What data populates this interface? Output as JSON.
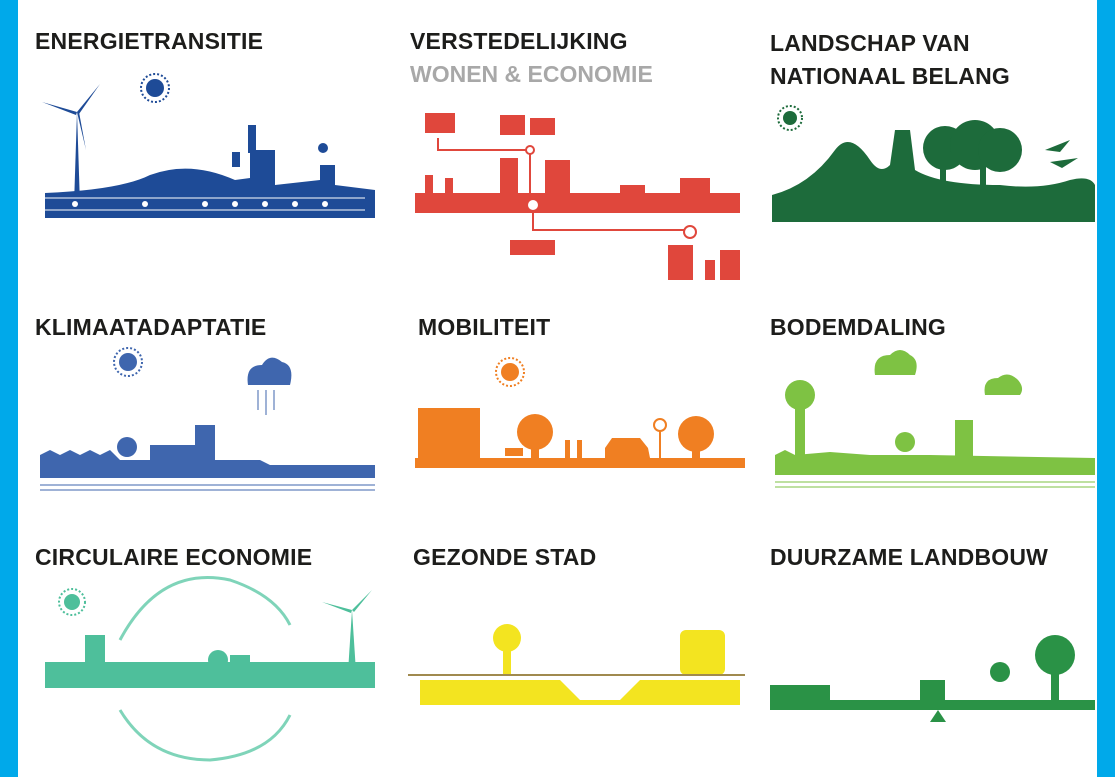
{
  "tiles": [
    {
      "title": "ENERGIETRANSITIE"
    },
    {
      "title": "VERSTEDELIJKING",
      "subtitle": "WONEN & ECONOMIE"
    },
    {
      "title": "LANDSCHAP VAN NATIONAAL BELANG"
    },
    {
      "title": "KLIMAATADAPTATIE"
    },
    {
      "title": "MOBILITEIT"
    },
    {
      "title": "BODEMDALING"
    },
    {
      "title": "CIRCULAIRE ECONOMIE"
    },
    {
      "title": "GEZONDE STAD"
    },
    {
      "title": "DUURZAME LANDBOUW"
    }
  ]
}
